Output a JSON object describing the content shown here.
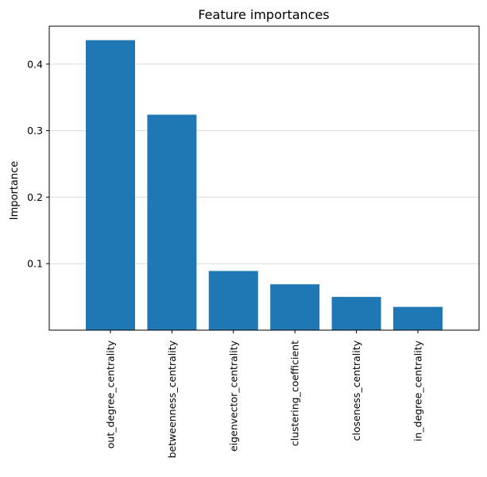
{
  "chart_data": {
    "type": "bar",
    "title": "Feature importances",
    "xlabel": "",
    "ylabel": "Importance",
    "categories": [
      "out_degree_centrality",
      "betweenness_centrality",
      "eigenvector_centrality",
      "clustering_coefficient",
      "closeness_centrality",
      "in_degree_centrality"
    ],
    "values": [
      0.436,
      0.324,
      0.089,
      0.069,
      0.05,
      0.035
    ],
    "ylim": [
      0.0,
      0.457
    ],
    "yticks": [
      0.1,
      0.2,
      0.3,
      0.4
    ],
    "ytick_labels": [
      "0.1",
      "0.2",
      "0.3",
      "0.4"
    ],
    "grid": "horizontal",
    "bar_color": "#1f77b4",
    "grid_color": "#dcdcdc"
  }
}
